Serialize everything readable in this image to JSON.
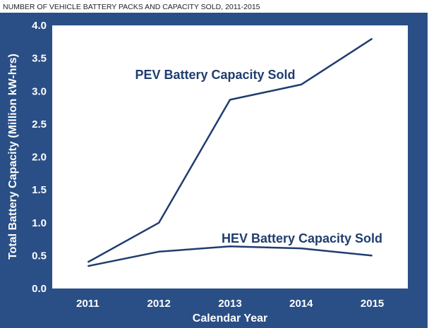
{
  "caption": "NUMBER OF VEHICLE BATTERY PACKS AND CAPACITY SOLD, 2011-2015",
  "colors": {
    "frame": "#2a4f86",
    "plot_bg": "#ffffff",
    "line": "#1f3d6e",
    "text_light": "#ffffff"
  },
  "chart_data": {
    "type": "line",
    "title": "",
    "xlabel": "Calendar Year",
    "ylabel": "Total Battery Capacity (Million kW-hrs)",
    "categories": [
      "2011",
      "2012",
      "2013",
      "2014",
      "2015"
    ],
    "ylim": [
      0,
      4.0
    ],
    "yticks": [
      "0.0",
      "0.5",
      "1.0",
      "1.5",
      "2.0",
      "2.5",
      "3.0",
      "3.5",
      "4.0"
    ],
    "grid": false,
    "legend": "none",
    "series": [
      {
        "name": "PEV Battery Capacity Sold",
        "values": [
          0.4,
          1.0,
          2.87,
          3.1,
          3.8
        ]
      },
      {
        "name": "HEV Battery Capacity Sold",
        "values": [
          0.34,
          0.56,
          0.64,
          0.61,
          0.5
        ]
      }
    ]
  }
}
